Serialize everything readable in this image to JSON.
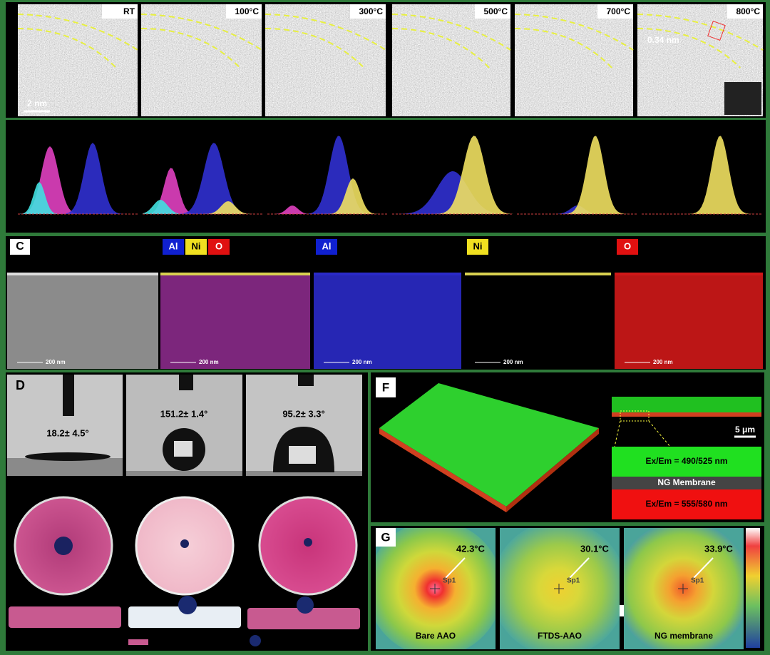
{
  "panel_a": {
    "images": [
      {
        "label": "RT"
      },
      {
        "label": "100°C"
      },
      {
        "label": "300°C"
      },
      {
        "label": "500°C"
      },
      {
        "label": "700°C"
      },
      {
        "label": "800°C"
      }
    ],
    "scale_bar": "2 nm",
    "lattice": "0.34 nm"
  },
  "panel_c": {
    "label": "C",
    "overlay": [
      "Al",
      "Ni",
      "O"
    ],
    "maps": [
      "Al",
      "Ni",
      "O"
    ],
    "scale_bars": [
      "200 nm",
      "200 nm",
      "200 nm",
      "200 nm",
      "200 nm"
    ]
  },
  "panel_d": {
    "label": "D",
    "angles": [
      "18.2± 4.5°",
      "151.2± 1.4°",
      "95.2± 3.3°"
    ]
  },
  "panel_f": {
    "label": "F",
    "scale_bar": "5 μm",
    "green_layer": "Ex/Em = 490/525 nm",
    "middle": "NG Membrane",
    "red_layer": "Ex/Em = 555/580 nm"
  },
  "panel_g": {
    "label": "G",
    "images": [
      {
        "temp": "42.3°C",
        "spot": "Sp1",
        "caption": "Bare AAO"
      },
      {
        "temp": "30.1°C",
        "spot": "Sp1",
        "caption": "FTDS-AAO"
      },
      {
        "temp": "33.9°C",
        "spot": "Sp1",
        "caption": "NG membrane"
      }
    ]
  }
}
